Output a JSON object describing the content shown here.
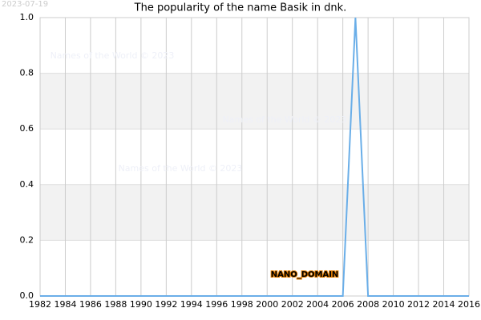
{
  "chart_data": {
    "type": "line",
    "title": "The popularity of the name Basik in dnk.",
    "date_stamp": "2023-07-19",
    "watermarks": [
      "Names of the World © 2023",
      "Names of the World © 2023",
      "Names of the World © 2023"
    ],
    "annotation": "NANO_DOMAIN",
    "x": [
      1982,
      1983,
      1984,
      1985,
      1986,
      1987,
      1988,
      1989,
      1990,
      1991,
      1992,
      1993,
      1994,
      1995,
      1996,
      1997,
      1998,
      1999,
      2000,
      2001,
      2002,
      2003,
      2004,
      2005,
      2006,
      2007,
      2008,
      2009,
      2010,
      2011,
      2012,
      2013,
      2014,
      2015,
      2016
    ],
    "values": [
      0,
      0,
      0,
      0,
      0,
      0,
      0,
      0,
      0,
      0,
      0,
      0,
      0,
      0,
      0,
      0,
      0,
      0,
      0,
      0,
      0,
      0,
      0,
      0,
      0,
      1,
      0,
      0,
      0,
      0,
      0,
      0,
      0,
      0,
      0
    ],
    "color": "#6aaee8",
    "xlim": [
      1982,
      2016
    ],
    "xticks": [
      1982,
      1984,
      1986,
      1988,
      1990,
      1992,
      1994,
      1996,
      1998,
      2000,
      2002,
      2004,
      2006,
      2008,
      2010,
      2012,
      2014,
      2016
    ],
    "ylim": [
      0,
      1
    ],
    "yticks": [
      {
        "value": 0,
        "label": "0.0"
      },
      0.2,
      0.4,
      0.6,
      0.8,
      {
        "value": 1,
        "label": "1.0"
      }
    ],
    "grid": true
  }
}
